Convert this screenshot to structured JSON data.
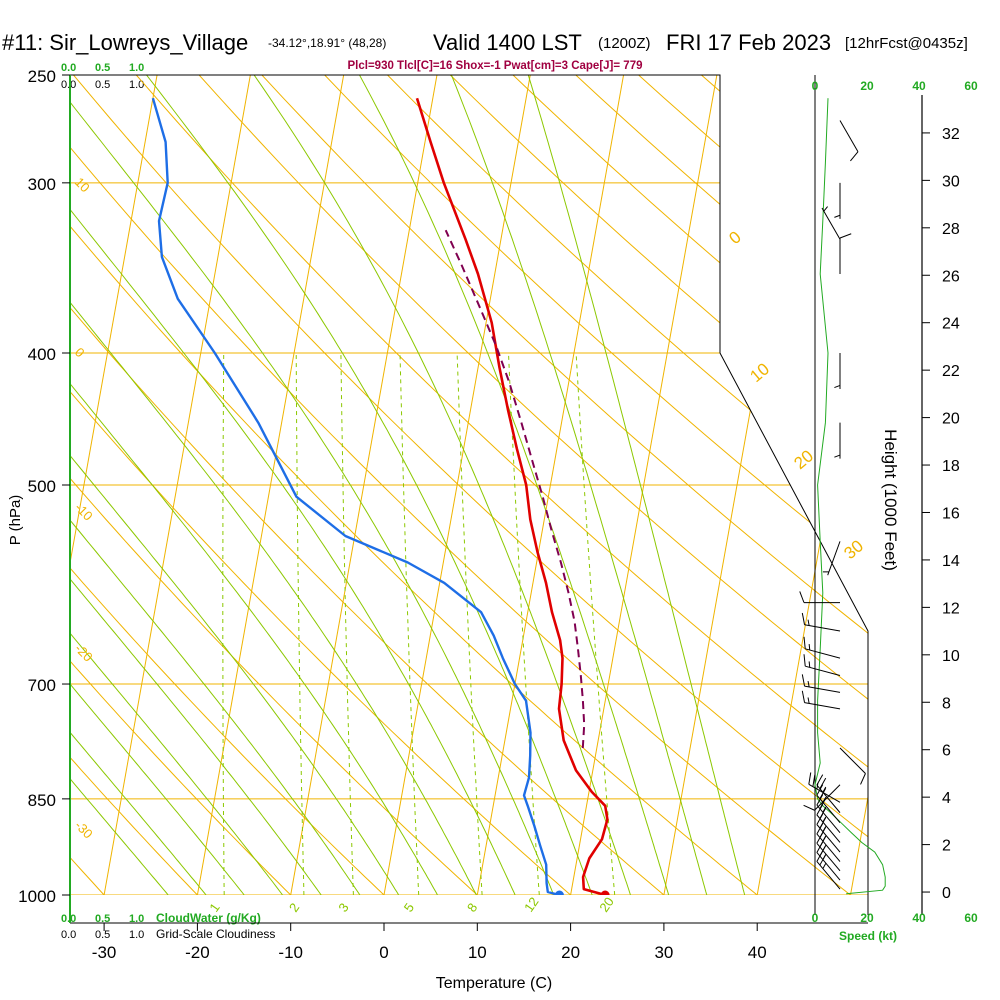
{
  "header": {
    "station": "#11: Sir_Lowreys_Village",
    "coords": "-34.12°,18.91° (48,28)",
    "valid": "Valid 1400 LST",
    "utc": "(1200Z)",
    "date": "FRI 17 Feb 2023",
    "forecast": "[12hrFcst@0435z]",
    "params": "Plcl=930 Tlcl[C]=16 Shox=-1 Pwat[cm]=3 Cape[J]= 779"
  },
  "colors": {
    "isotherm": "#f0b400",
    "dry_adiabat": "#f0b400",
    "moist_adiabat": "#8cc800",
    "mixing_ratio": "#8cc800",
    "temperature": "#e00000",
    "dewpoint": "#1e6ee6",
    "parcel": "#800050",
    "cloudwater": "#22aa22",
    "frame": "#000000",
    "params_text": "#a00040"
  },
  "cloud_scale": {
    "top_green": [
      "0.0",
      "0.5",
      "1.0"
    ],
    "top_black": [
      "0.0",
      "0.5",
      "1.0"
    ],
    "bottom_green": [
      "0.0",
      "0.5",
      "1.0"
    ],
    "bottom_green_label": "CloudWater (g/Kg)",
    "bottom_black": [
      "0.0",
      "0.5",
      "1.0"
    ],
    "bottom_black_label": "Grid-Scale Cloudiness"
  },
  "speed_axis": {
    "label": "Speed (kt)",
    "ticks": [
      "0",
      "20",
      "40",
      "60"
    ]
  },
  "chart_data": {
    "type": "line",
    "title": "Skew-T log-P sounding",
    "xlabel": "Temperature (C)",
    "ylabel": "P (hPa)",
    "y2label": "Height (1000 Feet)",
    "xlim": [
      -35,
      36
    ],
    "ylim": [
      1000,
      250
    ],
    "x_ticks": [
      -30,
      -20,
      -10,
      0,
      10,
      20,
      30,
      40
    ],
    "p_ticks": [
      250,
      300,
      400,
      500,
      700,
      850,
      1000
    ],
    "height_ticks": [
      0,
      2,
      4,
      6,
      8,
      10,
      12,
      14,
      16,
      18,
      20,
      22,
      24,
      26,
      28,
      30,
      32
    ],
    "isotherm_labels": [
      {
        "t": "10",
        "p": 300
      },
      {
        "t": "0",
        "p": 400
      },
      {
        "t": "-10",
        "p": 520
      },
      {
        "t": "-20",
        "p": 660
      },
      {
        "t": "-30",
        "p": 890
      }
    ],
    "dry_adiabat_labels": [
      "0",
      "10",
      "20",
      "30"
    ],
    "mixing_ratio_labels": [
      "1",
      "2",
      "3",
      "5",
      "8",
      "12",
      "20"
    ],
    "mixing_ratios": [
      1,
      2,
      3,
      5,
      8,
      12,
      20
    ],
    "series": [
      {
        "name": "Temperature",
        "points": [
          [
            23.7,
            1000
          ],
          [
            21.3,
            990
          ],
          [
            21.0,
            970
          ],
          [
            21.3,
            940
          ],
          [
            22.3,
            910
          ],
          [
            22.5,
            880
          ],
          [
            22.0,
            860
          ],
          [
            20.3,
            840
          ],
          [
            18.2,
            810
          ],
          [
            16.3,
            770
          ],
          [
            15.2,
            730
          ],
          [
            15.0,
            700
          ],
          [
            14.6,
            670
          ],
          [
            14.0,
            650
          ],
          [
            12.6,
            620
          ],
          [
            11.4,
            590
          ],
          [
            9.9,
            560
          ],
          [
            8.5,
            530
          ],
          [
            7.4,
            500
          ],
          [
            5.7,
            470
          ],
          [
            4.0,
            440
          ],
          [
            2.3,
            410
          ],
          [
            0.6,
            380
          ],
          [
            -1.8,
            350
          ],
          [
            -3.8,
            330
          ],
          [
            -7.2,
            300
          ],
          [
            -9.4,
            280
          ],
          [
            -11.7,
            260
          ]
        ]
      },
      {
        "name": "Dewpoint",
        "points": [
          [
            18.8,
            1000
          ],
          [
            17.5,
            995
          ],
          [
            17.2,
            980
          ],
          [
            16.8,
            950
          ],
          [
            15.8,
            920
          ],
          [
            14.8,
            890
          ],
          [
            13.7,
            860
          ],
          [
            13.1,
            845
          ],
          [
            13.3,
            820
          ],
          [
            13.0,
            790
          ],
          [
            12.6,
            760
          ],
          [
            11.5,
            720
          ],
          [
            10.0,
            700
          ],
          [
            8.2,
            670
          ],
          [
            6.8,
            645
          ],
          [
            5.0,
            620
          ],
          [
            0.5,
            590
          ],
          [
            -3.8,
            570
          ],
          [
            -11.0,
            545
          ],
          [
            -17.0,
            510
          ],
          [
            -22.5,
            450
          ],
          [
            -28.5,
            400
          ],
          [
            -33.5,
            365
          ],
          [
            -36.0,
            340
          ],
          [
            -37.0,
            320
          ],
          [
            -36.8,
            300
          ],
          [
            -37.8,
            280
          ],
          [
            -40.0,
            260
          ]
        ]
      },
      {
        "name": "Parcel",
        "points": [
          [
            18.5,
            780
          ],
          [
            18.2,
            750
          ],
          [
            17.6,
            720
          ],
          [
            16.9,
            690
          ],
          [
            16.1,
            660
          ],
          [
            15.2,
            630
          ],
          [
            14.0,
            600
          ],
          [
            12.6,
            570
          ],
          [
            11.0,
            540
          ],
          [
            9.4,
            510
          ],
          [
            7.6,
            480
          ],
          [
            5.7,
            450
          ],
          [
            3.6,
            420
          ],
          [
            1.5,
            395
          ],
          [
            -1.0,
            370
          ],
          [
            -3.7,
            345
          ],
          [
            -6.1,
            325
          ]
        ]
      }
    ],
    "wind_barbs": [
      {
        "p": 990,
        "speed": 25,
        "dir": 320
      },
      {
        "p": 975,
        "speed": 25,
        "dir": 320
      },
      {
        "p": 960,
        "speed": 25,
        "dir": 320
      },
      {
        "p": 945,
        "speed": 25,
        "dir": 320
      },
      {
        "p": 930,
        "speed": 25,
        "dir": 320
      },
      {
        "p": 915,
        "speed": 25,
        "dir": 320
      },
      {
        "p": 900,
        "speed": 25,
        "dir": 320
      },
      {
        "p": 885,
        "speed": 25,
        "dir": 320
      },
      {
        "p": 870,
        "speed": 25,
        "dir": 320
      },
      {
        "p": 855,
        "speed": 25,
        "dir": 300
      },
      {
        "p": 830,
        "speed": 10,
        "dir": 225
      },
      {
        "p": 780,
        "speed": 10,
        "dir": 135
      },
      {
        "p": 730,
        "speed": 15,
        "dir": 280
      },
      {
        "p": 710,
        "speed": 15,
        "dir": 280
      },
      {
        "p": 690,
        "speed": 15,
        "dir": 285
      },
      {
        "p": 670,
        "speed": 15,
        "dir": 285
      },
      {
        "p": 640,
        "speed": 15,
        "dir": 280
      },
      {
        "p": 610,
        "speed": 10,
        "dir": 270
      },
      {
        "p": 550,
        "speed": 5,
        "dir": 200
      },
      {
        "p": 450,
        "speed": 5,
        "dir": 180
      },
      {
        "p": 400,
        "speed": 5,
        "dir": 180
      },
      {
        "p": 350,
        "speed": 10,
        "dir": 0
      },
      {
        "p": 330,
        "speed": 5,
        "dir": 330
      },
      {
        "p": 300,
        "speed": 5,
        "dir": 180
      },
      {
        "p": 270,
        "speed": 10,
        "dir": 150
      }
    ],
    "speed_profile": [
      [
        998,
        12
      ],
      [
        992,
        26
      ],
      [
        985,
        27
      ],
      [
        970,
        27
      ],
      [
        950,
        26
      ],
      [
        930,
        23
      ],
      [
        915,
        18
      ],
      [
        900,
        14
      ],
      [
        885,
        10
      ],
      [
        870,
        6
      ],
      [
        860,
        3
      ],
      [
        850,
        1
      ],
      [
        830,
        0
      ],
      [
        800,
        2
      ],
      [
        760,
        1
      ],
      [
        720,
        1
      ],
      [
        660,
        2
      ],
      [
        600,
        3
      ],
      [
        550,
        2
      ],
      [
        500,
        1
      ],
      [
        450,
        4
      ],
      [
        400,
        5
      ],
      [
        350,
        2
      ],
      [
        320,
        3
      ],
      [
        290,
        4
      ],
      [
        260,
        5
      ]
    ],
    "surface": {
      "temperature": 23.7,
      "dewpoint": 18.8
    }
  }
}
